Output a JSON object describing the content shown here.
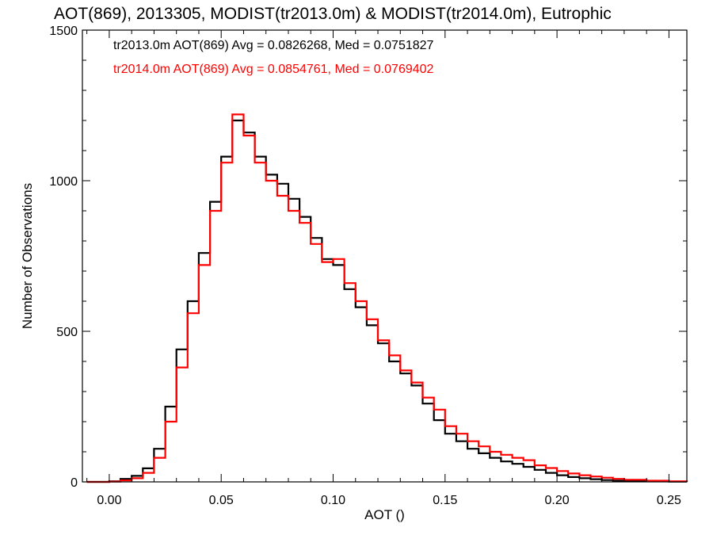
{
  "chart_data": {
    "type": "line",
    "title": "AOT(869), 2013305, MODIST(tr2013.0m) & MODIST(tr2014.0m), Eutrophic",
    "xlabel": "AOT ()",
    "ylabel": "Number of Observations",
    "xlim": [
      -0.012,
      0.258
    ],
    "ylim": [
      0,
      1500
    ],
    "x_ticks": [
      0.0,
      0.05,
      0.1,
      0.15,
      0.2,
      0.25
    ],
    "x_tick_labels": [
      "0.00",
      "0.05",
      "0.10",
      "0.15",
      "0.20",
      "0.25"
    ],
    "y_ticks": [
      0,
      500,
      1000,
      1500
    ],
    "y_tick_labels": [
      "0",
      "500",
      "1000",
      "1500"
    ],
    "grid": false,
    "legend_position": "top-left",
    "step": true,
    "series": [
      {
        "name": "tr2013.0m",
        "color": "#000000",
        "annotation": "tr2013.0m AOT(869) Avg = 0.0826268, Med = 0.0751827",
        "points": [
          [
            -0.01,
            0
          ],
          [
            0.0,
            2
          ],
          [
            0.005,
            10
          ],
          [
            0.01,
            20
          ],
          [
            0.015,
            45
          ],
          [
            0.02,
            110
          ],
          [
            0.025,
            250
          ],
          [
            0.03,
            440
          ],
          [
            0.035,
            600
          ],
          [
            0.04,
            760
          ],
          [
            0.045,
            930
          ],
          [
            0.05,
            1080
          ],
          [
            0.055,
            1200
          ],
          [
            0.06,
            1160
          ],
          [
            0.065,
            1080
          ],
          [
            0.07,
            1020
          ],
          [
            0.075,
            990
          ],
          [
            0.08,
            940
          ],
          [
            0.085,
            880
          ],
          [
            0.09,
            810
          ],
          [
            0.095,
            740
          ],
          [
            0.1,
            720
          ],
          [
            0.105,
            640
          ],
          [
            0.11,
            580
          ],
          [
            0.115,
            520
          ],
          [
            0.12,
            460
          ],
          [
            0.125,
            400
          ],
          [
            0.13,
            360
          ],
          [
            0.135,
            320
          ],
          [
            0.14,
            260
          ],
          [
            0.145,
            205
          ],
          [
            0.15,
            160
          ],
          [
            0.155,
            135
          ],
          [
            0.16,
            110
          ],
          [
            0.165,
            95
          ],
          [
            0.17,
            80
          ],
          [
            0.175,
            68
          ],
          [
            0.18,
            60
          ],
          [
            0.185,
            50
          ],
          [
            0.19,
            40
          ],
          [
            0.195,
            30
          ],
          [
            0.2,
            22
          ],
          [
            0.205,
            16
          ],
          [
            0.21,
            12
          ],
          [
            0.215,
            9
          ],
          [
            0.22,
            6
          ],
          [
            0.225,
            4
          ],
          [
            0.23,
            3
          ],
          [
            0.24,
            2
          ],
          [
            0.25,
            1
          ],
          [
            0.258,
            0
          ]
        ]
      },
      {
        "name": "tr2014.0m",
        "color": "#ff0000",
        "annotation": "tr2014.0m AOT(869) Avg = 0.0854761, Med = 0.0769402",
        "points": [
          [
            -0.01,
            0
          ],
          [
            0.0,
            1
          ],
          [
            0.005,
            5
          ],
          [
            0.01,
            12
          ],
          [
            0.015,
            30
          ],
          [
            0.02,
            80
          ],
          [
            0.025,
            200
          ],
          [
            0.03,
            380
          ],
          [
            0.035,
            560
          ],
          [
            0.04,
            720
          ],
          [
            0.045,
            900
          ],
          [
            0.05,
            1060
          ],
          [
            0.055,
            1220
          ],
          [
            0.06,
            1150
          ],
          [
            0.065,
            1060
          ],
          [
            0.07,
            1000
          ],
          [
            0.075,
            950
          ],
          [
            0.08,
            900
          ],
          [
            0.085,
            860
          ],
          [
            0.09,
            790
          ],
          [
            0.095,
            730
          ],
          [
            0.1,
            740
          ],
          [
            0.105,
            660
          ],
          [
            0.11,
            600
          ],
          [
            0.115,
            540
          ],
          [
            0.12,
            470
          ],
          [
            0.125,
            420
          ],
          [
            0.13,
            370
          ],
          [
            0.135,
            330
          ],
          [
            0.14,
            280
          ],
          [
            0.145,
            240
          ],
          [
            0.15,
            185
          ],
          [
            0.155,
            160
          ],
          [
            0.16,
            135
          ],
          [
            0.165,
            118
          ],
          [
            0.17,
            100
          ],
          [
            0.175,
            90
          ],
          [
            0.18,
            80
          ],
          [
            0.185,
            72
          ],
          [
            0.19,
            55
          ],
          [
            0.195,
            46
          ],
          [
            0.2,
            36
          ],
          [
            0.205,
            28
          ],
          [
            0.21,
            22
          ],
          [
            0.215,
            18
          ],
          [
            0.22,
            14
          ],
          [
            0.225,
            10
          ],
          [
            0.23,
            7
          ],
          [
            0.24,
            4
          ],
          [
            0.25,
            2
          ],
          [
            0.258,
            0
          ]
        ]
      }
    ]
  }
}
